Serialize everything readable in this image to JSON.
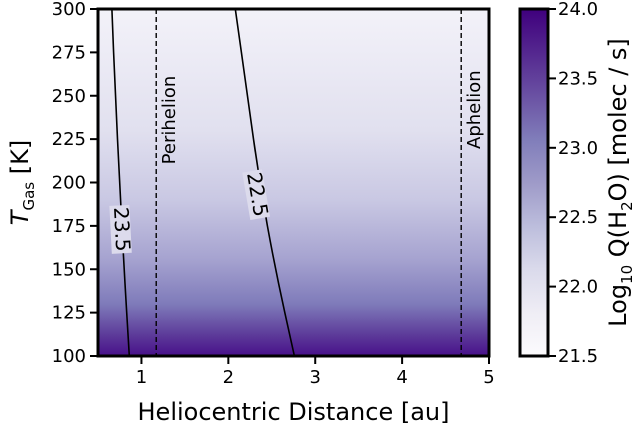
{
  "chart_data": {
    "type": "heatmap",
    "xlabel": "Heliocentric Distance [au]",
    "ylabel": {
      "main": "T",
      "sub": "Gas",
      "unit": " [K]"
    },
    "colorbar_label": {
      "pre": "Log",
      "sub10": "10",
      "mid": " Q(H",
      "sub2": "2",
      "post": "O) [molec / s]"
    },
    "xlim": [
      0.5,
      5
    ],
    "ylim": [
      100,
      300
    ],
    "xticks": [
      1,
      2,
      3,
      4,
      5
    ],
    "yticks": [
      100,
      125,
      150,
      175,
      200,
      225,
      250,
      275,
      300
    ],
    "colorbar_range": [
      21.5,
      24.0
    ],
    "colorbar_ticks": [
      21.5,
      22.0,
      22.5,
      23.0,
      23.5,
      24.0
    ],
    "colormap": [
      "#fcfbfd",
      "#efedf5",
      "#dadaeb",
      "#bcbddc",
      "#9e9ac8",
      "#807dba",
      "#6a51a3",
      "#54278f",
      "#3f007d"
    ],
    "contours": [
      {
        "level": "23.5",
        "points": [
          [
            0.66,
            300
          ],
          [
            0.7,
            250
          ],
          [
            0.75,
            200
          ],
          [
            0.8,
            150
          ],
          [
            0.86,
            100
          ]
        ],
        "label_at": [
          0.76,
          173
        ]
      },
      {
        "level": "22.5",
        "points": [
          [
            2.08,
            300
          ],
          [
            2.22,
            250
          ],
          [
            2.36,
            200
          ],
          [
            2.54,
            150
          ],
          [
            2.76,
            100
          ]
        ],
        "label_at": [
          2.32,
          193
        ]
      }
    ],
    "vlines": [
      {
        "x": 1.17,
        "label": "Perihelion",
        "label_y": 236
      },
      {
        "x": 4.68,
        "label": "Aphelion",
        "label_y": 242
      }
    ]
  }
}
